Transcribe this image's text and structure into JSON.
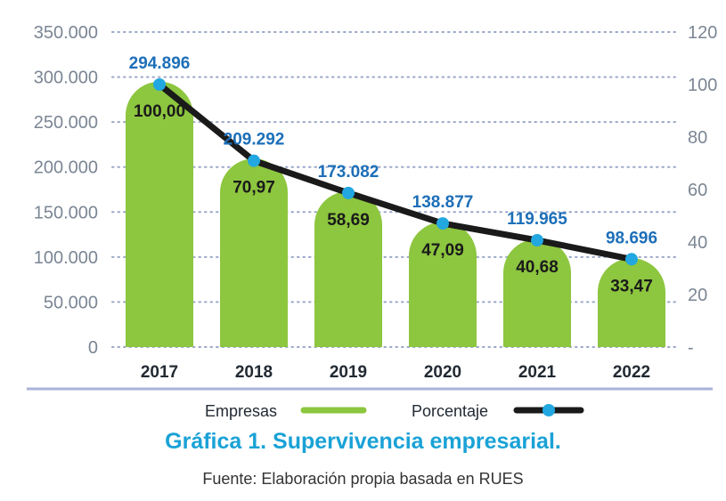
{
  "chart_data": {
    "type": "bar",
    "categories": [
      "2017",
      "2018",
      "2019",
      "2020",
      "2021",
      "2022"
    ],
    "series": [
      {
        "name": "Empresas",
        "type": "bar",
        "axis": "left",
        "values": [
          294896,
          209292,
          173082,
          138877,
          119965,
          98696
        ],
        "labels": [
          "294.896",
          "209.292",
          "173.082",
          "138.877",
          "119.965",
          "98.696"
        ]
      },
      {
        "name": "Porcentaje",
        "type": "line",
        "axis": "right",
        "values": [
          100.0,
          70.97,
          58.69,
          47.09,
          40.68,
          33.47
        ],
        "labels": [
          "100,00",
          "70,97",
          "58,69",
          "47,09",
          "40,68",
          "33,47"
        ]
      }
    ],
    "y_left": {
      "lim": [
        0,
        350000
      ],
      "ticks": [
        0,
        50000,
        100000,
        150000,
        200000,
        250000,
        300000,
        350000
      ],
      "tick_labels": [
        "0",
        "50.000",
        "100.000",
        "150.000",
        "200.000",
        "250.000",
        "300.000",
        "350.000"
      ]
    },
    "y_right": {
      "lim": [
        0,
        120
      ],
      "ticks": [
        0,
        20,
        40,
        60,
        80,
        100,
        120
      ],
      "tick_labels": [
        "-",
        "20",
        "40",
        "60",
        "80",
        "100",
        "120"
      ]
    },
    "grid": "dotted horizontal",
    "legend": "bottom",
    "legend_items": [
      "Empresas",
      "Porcentaje"
    ],
    "title": "Gráfica 1. Supervivencia empresarial.",
    "source": "Fuente: Elaboración propia basada en RUES"
  },
  "colors": {
    "bar": "#8dc63f",
    "line": "#1a1a1a",
    "marker": "#22a7e0",
    "grid": "#9aa6c8",
    "baseline": "#a9b2d8",
    "title": "#1aa2d6",
    "value_label": "#1d6fb8"
  }
}
